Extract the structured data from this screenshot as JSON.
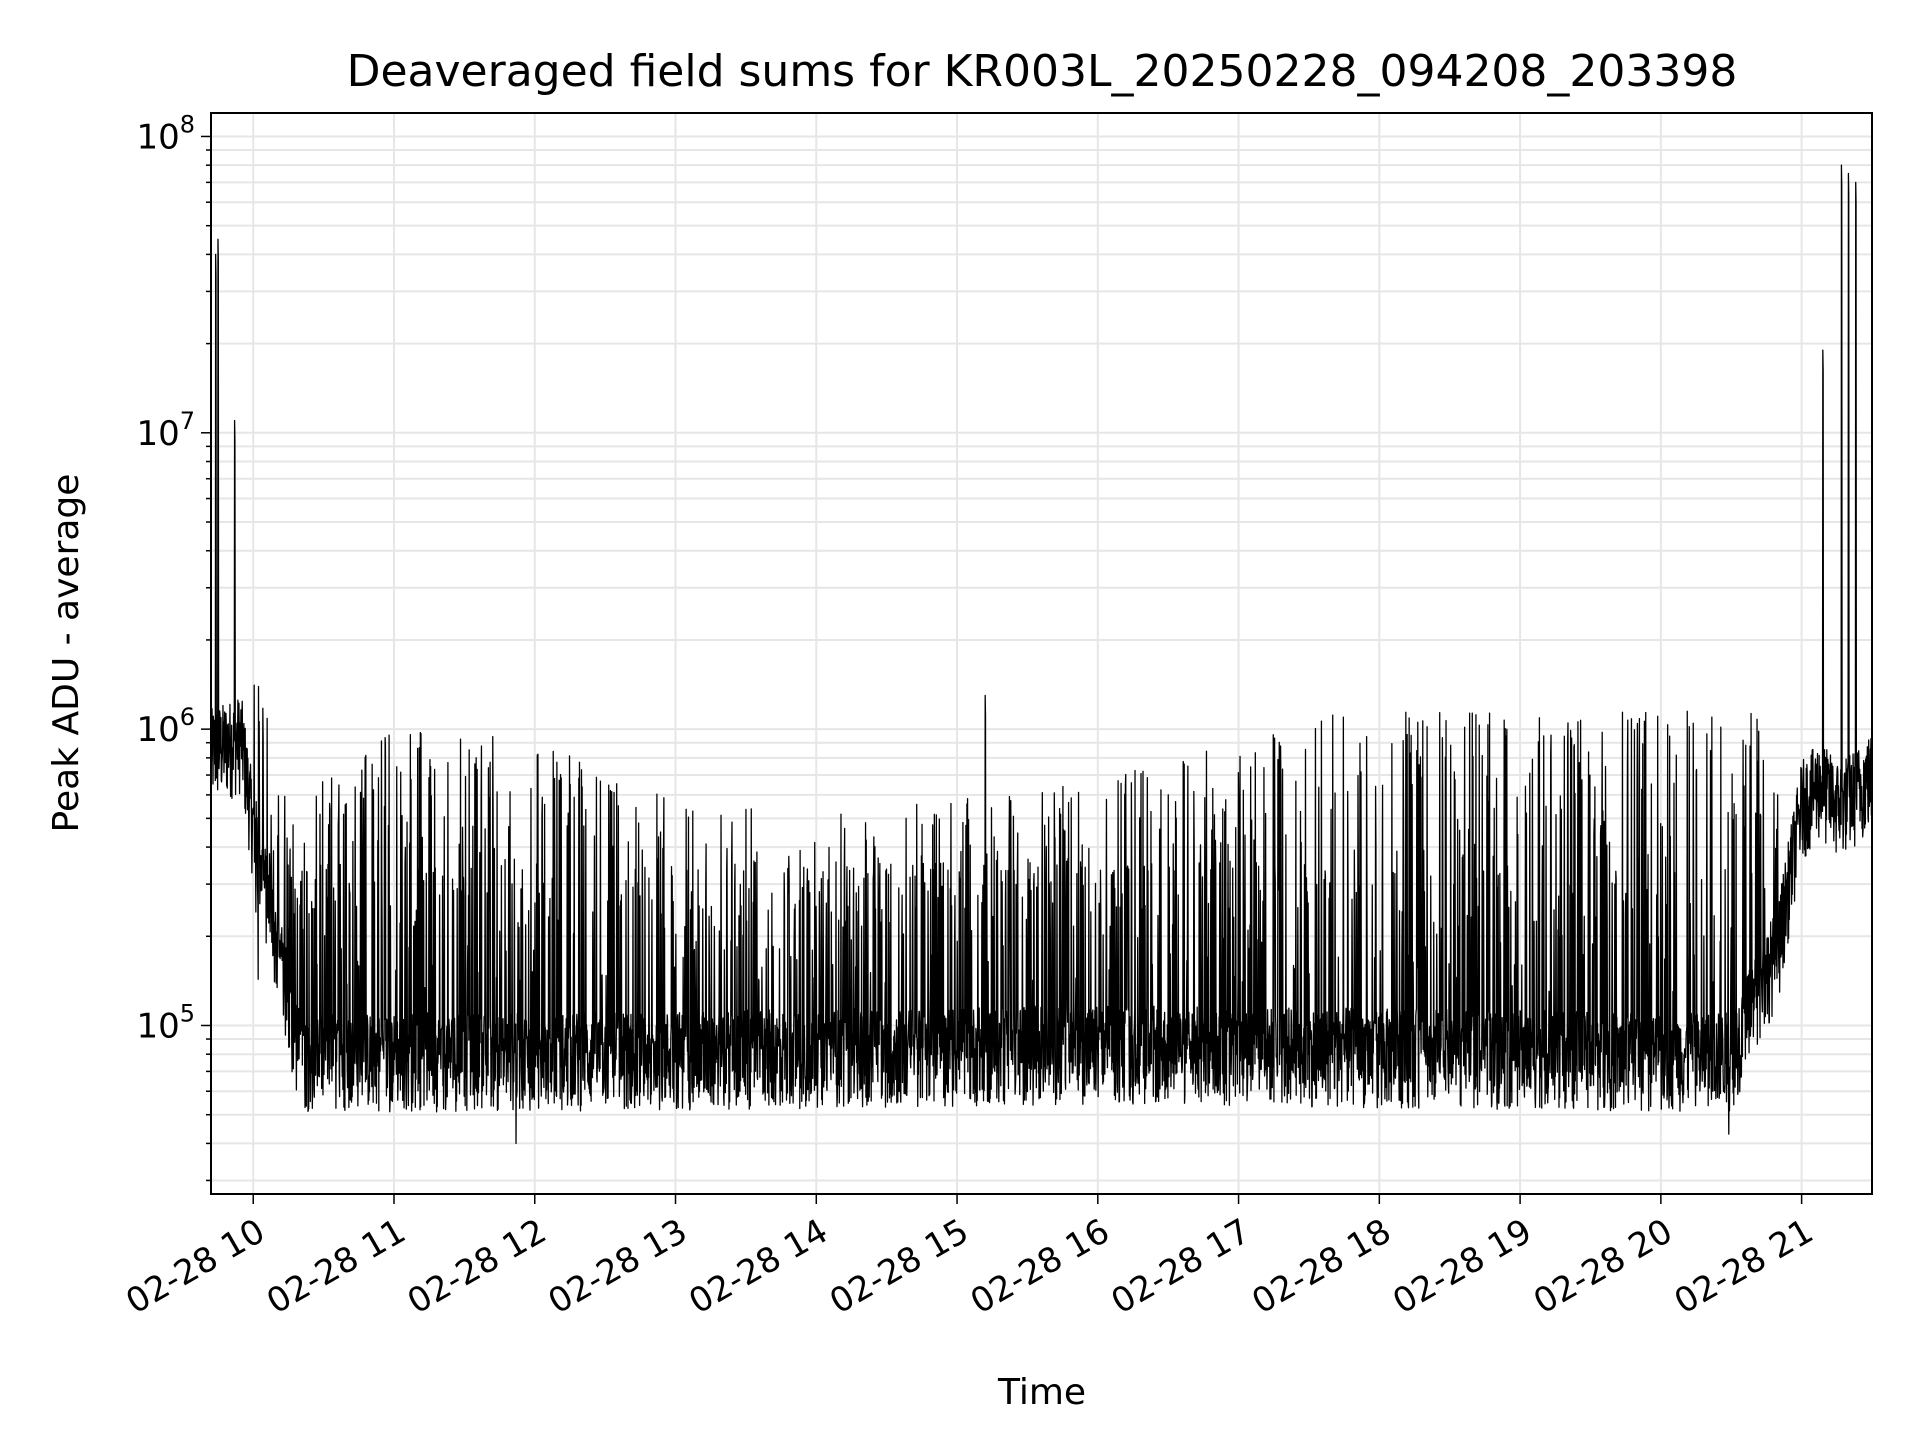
{
  "chart_data": {
    "type": "line",
    "title": "Deaveraged field sums for KR003L_20250228_094208_203398",
    "xlabel": "Time",
    "ylabel": "Peak ADU - average",
    "y_scale": "log",
    "ylim": [
      27000,
      120000000
    ],
    "xlim": [
      "2025-02-28 09:42",
      "2025-02-28 21:30"
    ],
    "grid": true,
    "line_color": "#000000",
    "grid_color": "#e6e6e6",
    "x_ticks": [
      {
        "label": "02-28 10",
        "time": "2025-02-28 10:00"
      },
      {
        "label": "02-28 11",
        "time": "2025-02-28 11:00"
      },
      {
        "label": "02-28 12",
        "time": "2025-02-28 12:00"
      },
      {
        "label": "02-28 13",
        "time": "2025-02-28 13:00"
      },
      {
        "label": "02-28 14",
        "time": "2025-02-28 14:00"
      },
      {
        "label": "02-28 15",
        "time": "2025-02-28 15:00"
      },
      {
        "label": "02-28 16",
        "time": "2025-02-28 16:00"
      },
      {
        "label": "02-28 17",
        "time": "2025-02-28 17:00"
      },
      {
        "label": "02-28 18",
        "time": "2025-02-28 18:00"
      },
      {
        "label": "02-28 19",
        "time": "2025-02-28 19:00"
      },
      {
        "label": "02-28 20",
        "time": "2025-02-28 20:00"
      },
      {
        "label": "02-28 21",
        "time": "2025-02-28 21:00"
      }
    ],
    "y_ticks": [
      {
        "base": "10",
        "exp": "5",
        "value": 100000
      },
      {
        "base": "10",
        "exp": "6",
        "value": 1000000
      },
      {
        "base": "10",
        "exp": "7",
        "value": 10000000
      },
      {
        "base": "10",
        "exp": "8",
        "value": 100000000
      }
    ],
    "series": [
      {
        "baseline": [
          [
            "2025-02-28 09:42",
            900000
          ],
          [
            "2025-02-28 09:55",
            1000000
          ],
          [
            "2025-02-28 10:00",
            500000
          ],
          [
            "2025-02-28 10:10",
            200000
          ],
          [
            "2025-02-28 10:20",
            85000
          ],
          [
            "2025-02-28 12:00",
            85000
          ],
          [
            "2025-02-28 16:00",
            90000
          ],
          [
            "2025-02-28 20:30",
            85000
          ],
          [
            "2025-02-28 20:50",
            200000
          ],
          [
            "2025-02-28 21:00",
            600000
          ],
          [
            "2025-02-28 21:08",
            700000
          ],
          [
            "2025-02-28 21:15",
            600000
          ],
          [
            "2025-02-28 21:22",
            650000
          ],
          [
            "2025-02-28 21:30",
            750000
          ]
        ],
        "spike_level": [
          [
            "2025-02-28 10:00",
            300000
          ],
          [
            "2025-02-28 10:30",
            600000
          ],
          [
            "2025-02-28 11:00",
            900000
          ],
          [
            "2025-02-28 12:00",
            800000
          ],
          [
            "2025-02-28 13:00",
            500000
          ],
          [
            "2025-02-28 14:00",
            450000
          ],
          [
            "2025-02-28 15:00",
            500000
          ],
          [
            "2025-02-28 16:00",
            600000
          ],
          [
            "2025-02-28 17:00",
            800000
          ],
          [
            "2025-02-28 17:30",
            1000000
          ],
          [
            "2025-02-28 18:30",
            1000000
          ],
          [
            "2025-02-28 20:45",
            1000000
          ],
          [
            "2025-02-28 21:00",
            900000
          ]
        ],
        "peaks": [
          {
            "time": "2025-02-28 09:44",
            "value": 40000000
          },
          {
            "time": "2025-02-28 09:45",
            "value": 45000000
          },
          {
            "time": "2025-02-28 09:52",
            "value": 11000000
          },
          {
            "time": "2025-02-28 15:12",
            "value": 1300000
          },
          {
            "time": "2025-02-28 21:09",
            "value": 19000000
          },
          {
            "time": "2025-02-28 21:17",
            "value": 80000000
          },
          {
            "time": "2025-02-28 21:20",
            "value": 75000000
          },
          {
            "time": "2025-02-28 21:23",
            "value": 70000000
          }
        ],
        "min_values": [
          {
            "time": "2025-02-28 11:52",
            "value": 40000
          },
          {
            "time": "2025-02-28 20:29",
            "value": 43000
          }
        ]
      }
    ]
  }
}
